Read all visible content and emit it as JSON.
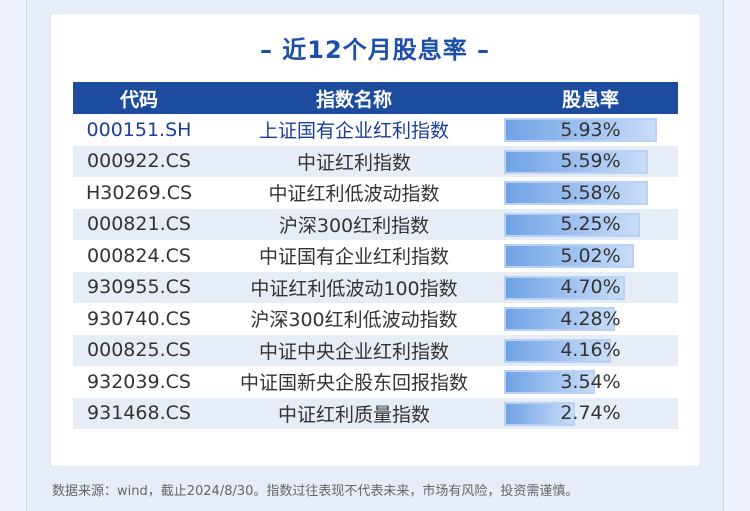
{
  "title": "– 近12个月股息率 –",
  "table": {
    "headers": {
      "code": "代码",
      "name": "指数名称",
      "yield": "股息率"
    },
    "rows": [
      {
        "code": "000151.SH",
        "name": "上证国有企业红利指数",
        "yield": "5.93%",
        "value": 5.93
      },
      {
        "code": "000922.CS",
        "name": "中证红利指数",
        "yield": "5.59%",
        "value": 5.59
      },
      {
        "code": "H30269.CS",
        "name": "中证红利低波动指数",
        "yield": "5.58%",
        "value": 5.58
      },
      {
        "code": "000821.CS",
        "name": "沪深300红利指数",
        "yield": "5.25%",
        "value": 5.25
      },
      {
        "code": "000824.CS",
        "name": "中证国有企业红利指数",
        "yield": "5.02%",
        "value": 5.02
      },
      {
        "code": "930955.CS",
        "name": "中证红利低波动100指数",
        "yield": "4.70%",
        "value": 4.7
      },
      {
        "code": "930740.CS",
        "name": "沪深300红利低波动指数",
        "yield": "4.28%",
        "value": 4.28
      },
      {
        "code": "000825.CS",
        "name": "中证中央企业红利指数",
        "yield": "4.16%",
        "value": 4.16
      },
      {
        "code": "932039.CS",
        "name": "中证国新央企股东回报指数",
        "yield": "3.54%",
        "value": 3.54
      },
      {
        "code": "931468.CS",
        "name": "中证红利质量指数",
        "yield": "2.74%",
        "value": 2.74
      }
    ]
  },
  "footnote": "数据来源：wind，截止2024/8/30。指数过往表现不代表未来，市场有风险，投资需谨慎。",
  "colors": {
    "header_bg": "#1d4b9e",
    "title": "#1c4fa8",
    "bar": "#6fa3e6"
  }
}
